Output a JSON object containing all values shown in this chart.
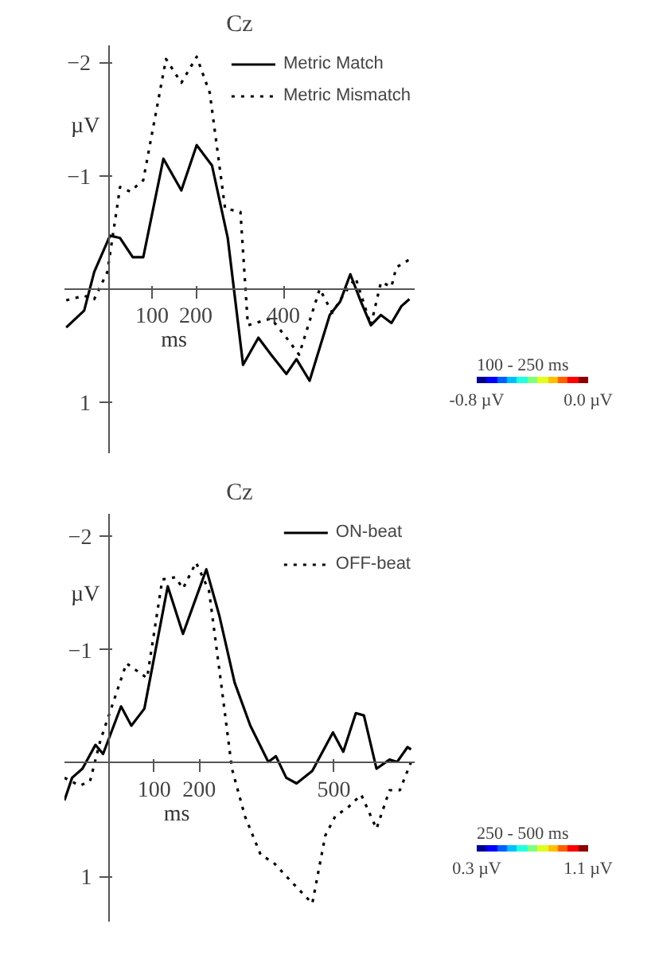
{
  "chart_data": [
    {
      "type": "line",
      "title": "Cz",
      "xlabel": "ms",
      "ylabel": "µV",
      "xlim": [
        -100,
        700
      ],
      "xticks": [
        100,
        200,
        400
      ],
      "ylim": [
        1.45,
        -2.15
      ],
      "yticks": [
        -2,
        -1,
        1
      ],
      "grid": false,
      "legend": "top right",
      "clabel": "100 - 250 ms",
      "clim": [
        -0.8,
        0.0
      ],
      "cticks": [
        {
          "value": -0.8,
          "label": "-0.8 µV"
        },
        {
          "value": 0.0,
          "label": "0.0 µV"
        }
      ],
      "series": [
        {
          "name": "Metric Match",
          "color": "#000000",
          "line_style": "solid",
          "x": [
            -96,
            -55,
            -32,
            4,
            27,
            56,
            80,
            126,
            167,
            202,
            237,
            273,
            308,
            343,
            372,
            407,
            430,
            460,
            506,
            530,
            553,
            577,
            600,
            623,
            647,
            670,
            688
          ],
          "values": [
            0.34,
            0.19,
            -0.15,
            -0.47,
            -0.45,
            -0.28,
            -0.28,
            -1.15,
            -0.87,
            -1.27,
            -1.09,
            -0.45,
            0.67,
            0.43,
            0.58,
            0.75,
            0.62,
            0.81,
            0.23,
            0.11,
            -0.13,
            0.11,
            0.32,
            0.23,
            0.3,
            0.15,
            0.09
          ]
        },
        {
          "name": "Metric Mismatch",
          "color": "#000000",
          "line_style": "dotted",
          "x": [
            -96,
            -55,
            -32,
            -2,
            27,
            50,
            80,
            132,
            167,
            202,
            232,
            267,
            302,
            319,
            372,
            407,
            436,
            483,
            512,
            536,
            565,
            600,
            623,
            647,
            658,
            688
          ],
          "values": [
            0.1,
            0.06,
            0.09,
            -0.15,
            -0.9,
            -0.86,
            -0.96,
            -2.03,
            -1.82,
            -2.05,
            -1.73,
            -0.71,
            -0.68,
            0.32,
            0.26,
            0.43,
            0.58,
            0.0,
            0.21,
            0.06,
            -0.1,
            0.32,
            -0.06,
            -0.02,
            -0.19,
            -0.26
          ]
        }
      ]
    },
    {
      "type": "line",
      "title": "Cz",
      "xlabel": "ms",
      "ylabel": "µV",
      "xlim": [
        -100,
        680
      ],
      "xticks": [
        100,
        200,
        500
      ],
      "ylim": [
        1.4,
        -2.2
      ],
      "yticks": [
        -2,
        -1,
        1
      ],
      "grid": false,
      "legend": "top right",
      "clabel": "250 - 500 ms",
      "clim": [
        0.3,
        1.1
      ],
      "cticks": [
        {
          "value": 0.3,
          "label": "0.3 µV"
        },
        {
          "value": 1.1,
          "label": "1.1 µV"
        }
      ],
      "series": [
        {
          "name": "ON-beat",
          "color": "#000000",
          "line_style": "solid",
          "x": [
            -100,
            -83,
            -60,
            -31,
            -14,
            26,
            49,
            78,
            130,
            164,
            216,
            245,
            279,
            314,
            354,
            371,
            394,
            417,
            452,
            498,
            521,
            549,
            567,
            595,
            624,
            641,
            664,
            672
          ],
          "values": [
            0.33,
            0.13,
            0.05,
            -0.16,
            -0.08,
            -0.5,
            -0.33,
            -0.48,
            -1.56,
            -1.14,
            -1.71,
            -1.3,
            -0.71,
            -0.33,
            -0.01,
            -0.06,
            0.13,
            0.18,
            0.07,
            -0.27,
            -0.1,
            -0.44,
            -0.42,
            0.05,
            -0.03,
            -0.01,
            -0.14,
            -0.12
          ]
        },
        {
          "name": "OFF-beat",
          "color": "#000000",
          "line_style": "dotted",
          "x": [
            -100,
            -66,
            -43,
            -20,
            38,
            84,
            118,
            147,
            164,
            193,
            222,
            250,
            273,
            302,
            337,
            366,
            406,
            452,
            481,
            503,
            532,
            561,
            595,
            624,
            647,
            672
          ],
          "values": [
            0.13,
            0.2,
            0.16,
            -0.2,
            -0.88,
            -0.75,
            -1.62,
            -1.64,
            -1.54,
            -1.77,
            -1.52,
            -0.67,
            0.05,
            0.47,
            0.81,
            0.88,
            1.05,
            1.24,
            0.64,
            0.47,
            0.39,
            0.28,
            0.58,
            0.24,
            0.24,
            -0.01
          ]
        }
      ]
    }
  ]
}
